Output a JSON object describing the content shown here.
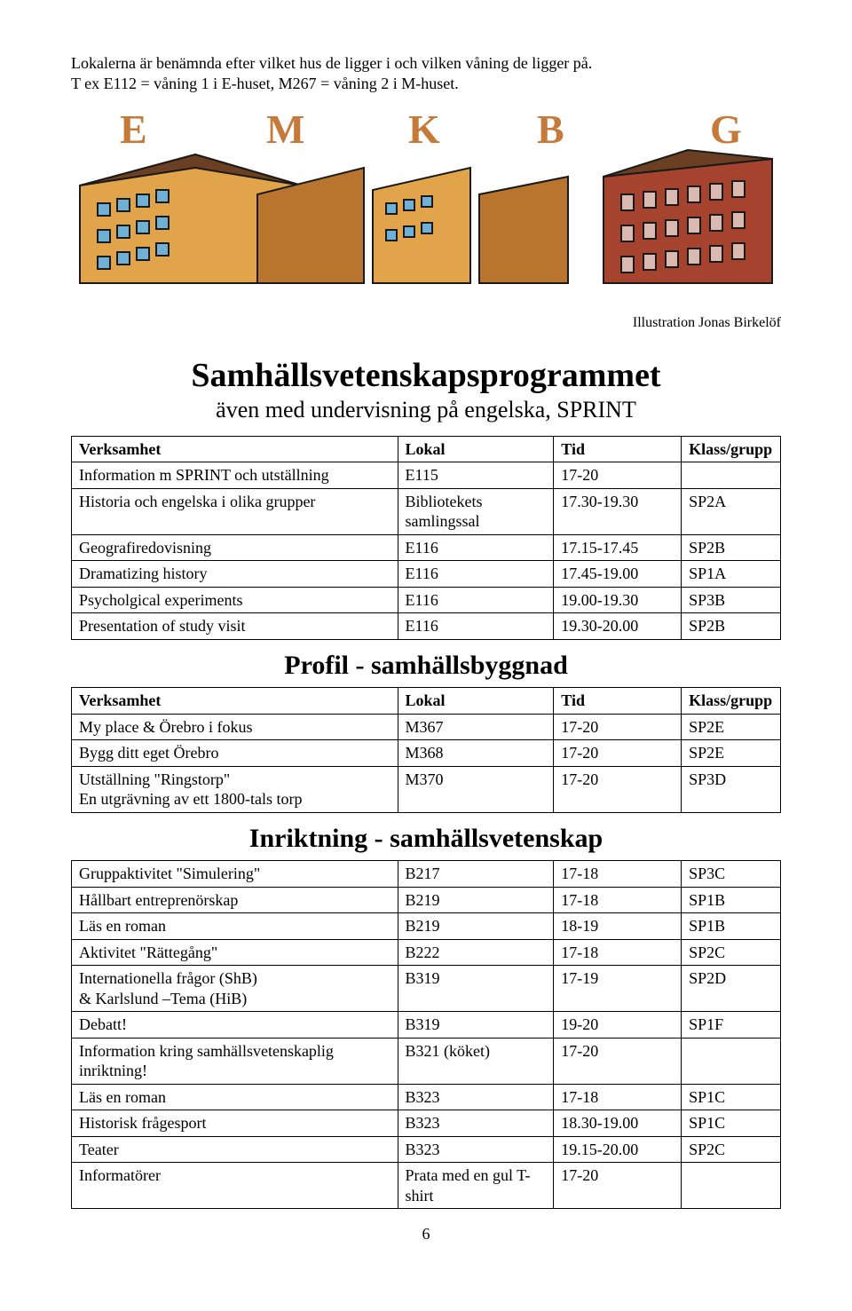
{
  "intro": {
    "line1": "Lokalerna är benämnda efter vilket hus de ligger i och vilken våning de ligger på.",
    "line2": "T ex E112 = våning 1 i E-huset, M267 = våning 2 i M-huset."
  },
  "illustration": {
    "letters": [
      "E",
      "M",
      "K",
      "B",
      "G"
    ],
    "letter_color": "#c57a3a",
    "building_fill": "#e2a44a",
    "building_fill_dark": "#b9742e",
    "brick_fill": "#a5432f",
    "window_fill": "#6fb0d6",
    "roof_fill": "#6a3f22",
    "outline": "#1a1a1a",
    "caption": "Illustration Jonas Birkelöf"
  },
  "headings": {
    "main": "Samhällsvetenskapsprogrammet",
    "sub": "även med undervisning på engelska, SPRINT",
    "profil": "Profil - samhällsbyggnad",
    "inriktning": "Inriktning - samhällsvetenskap"
  },
  "columns": {
    "c1": "Verksamhet",
    "c2": "Lokal",
    "c3": "Tid",
    "c4": "Klass/grupp"
  },
  "table1": [
    {
      "v": "Information m SPRINT och utställning",
      "l": "E115",
      "t": "17-20",
      "k": ""
    },
    {
      "v": "Historia och engelska i olika grupper",
      "l": "Bibliotekets samlingssal",
      "t": "17.30-19.30",
      "k": "SP2A"
    },
    {
      "v": "Geografiredovisning",
      "l": "E116",
      "t": "17.15-17.45",
      "k": "SP2B"
    },
    {
      "v": "Dramatizing history",
      "l": "E116",
      "t": "17.45-19.00",
      "k": "SP1A"
    },
    {
      "v": "Psycholgical experiments",
      "l": "E116",
      "t": "19.00-19.30",
      "k": "SP3B"
    },
    {
      "v": "Presentation of study visit",
      "l": "E116",
      "t": "19.30-20.00",
      "k": "SP2B"
    }
  ],
  "table2": [
    {
      "v": "My place & Örebro i fokus",
      "l": "M367",
      "t": "17-20",
      "k": "SP2E"
    },
    {
      "v": "Bygg ditt eget Örebro",
      "l": "M368",
      "t": "17-20",
      "k": "SP2E"
    },
    {
      "v": "Utställning \"Ringstorp\"\nEn utgrävning av ett 1800-tals torp",
      "l": "M370",
      "t": "17-20",
      "k": "SP3D"
    }
  ],
  "table3": [
    {
      "v": "Gruppaktivitet \"Simulering\"",
      "l": "B217",
      "t": "17-18",
      "k": "SP3C"
    },
    {
      "v": "Hållbart entreprenörskap",
      "l": "B219",
      "t": "17-18",
      "k": "SP1B"
    },
    {
      "v": "Läs en roman",
      "l": "B219",
      "t": "18-19",
      "k": "SP1B"
    },
    {
      "v": "Aktivitet \"Rättegång\"",
      "l": "B222",
      "t": "17-18",
      "k": "SP2C"
    },
    {
      "v": "Internationella frågor (ShB)\n& Karlslund –Tema (HiB)",
      "l": "B319",
      "t": "17-19",
      "k": "SP2D"
    },
    {
      "v": "Debatt!",
      "l": "B319",
      "t": "19-20",
      "k": "SP1F"
    },
    {
      "v": "Information kring samhällsvetenskaplig inriktning!",
      "l": "B321 (köket)",
      "t": "17-20",
      "k": ""
    },
    {
      "v": "Läs en roman",
      "l": "B323",
      "t": "17-18",
      "k": "SP1C"
    },
    {
      "v": "Historisk frågesport",
      "l": "B323",
      "t": "18.30-19.00",
      "k": "SP1C"
    },
    {
      "v": "Teater",
      "l": "B323",
      "t": "19.15-20.00",
      "k": "SP2C"
    },
    {
      "v": "Informatörer",
      "l": "Prata med en gul T-shirt",
      "t": "17-20",
      "k": ""
    }
  ],
  "page_number": "6"
}
